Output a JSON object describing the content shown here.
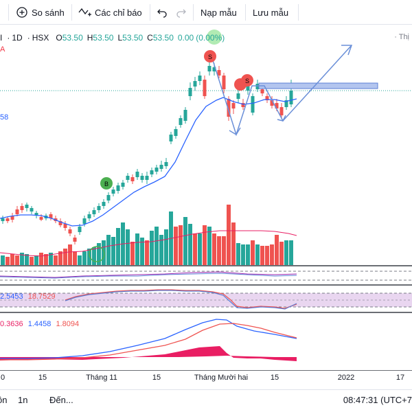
{
  "toolbar": {
    "compare_label": "So sánh",
    "indicators_label": "Các chỉ báo",
    "load_label": "Nạp mẫu",
    "save_label": "Lưu mẫu"
  },
  "legend": {
    "symbol_tail": "I",
    "interval": "1D",
    "exchange": "HSX",
    "open_label": "O",
    "open": "53.50",
    "high_label": "H",
    "high": "53.50",
    "low_label": "L",
    "low": "53.50",
    "close_label": "C",
    "close": "53.50",
    "change": "0.00",
    "change_pct": "(0.00%)"
  },
  "right_label": "Thị",
  "ma_value": "58",
  "red_marker": "A",
  "rsi": {
    "v1": "2.5453",
    "v2": "18.7529"
  },
  "macd": {
    "v1": "0.3636",
    "v2": "1.4458",
    "v3": "1.8094"
  },
  "signals": {
    "buy": "B",
    "sell": "S"
  },
  "xaxis": {
    "t0": "0",
    "t1": "15",
    "t2": "Tháng 11",
    "t3": "15",
    "t4": "Tháng Mười hai",
    "t5": "15",
    "t6": "2022",
    "t7": "17"
  },
  "bottom": {
    "range1": "ôn",
    "range2": "1n",
    "goto": "Đến...",
    "time": "08:47:31 (UTC+7"
  },
  "colors": {
    "up": "#26a69a",
    "down": "#ef5350",
    "ma": "#2962ff",
    "volume_ma": "#e91e63",
    "rsi_band": "#e1bee7",
    "macd_hist": "#e91e63"
  },
  "icons": {
    "compare": "plus-circle-icon",
    "indicators": "function-icon",
    "undo": "undo-icon",
    "redo": "redo-icon"
  }
}
